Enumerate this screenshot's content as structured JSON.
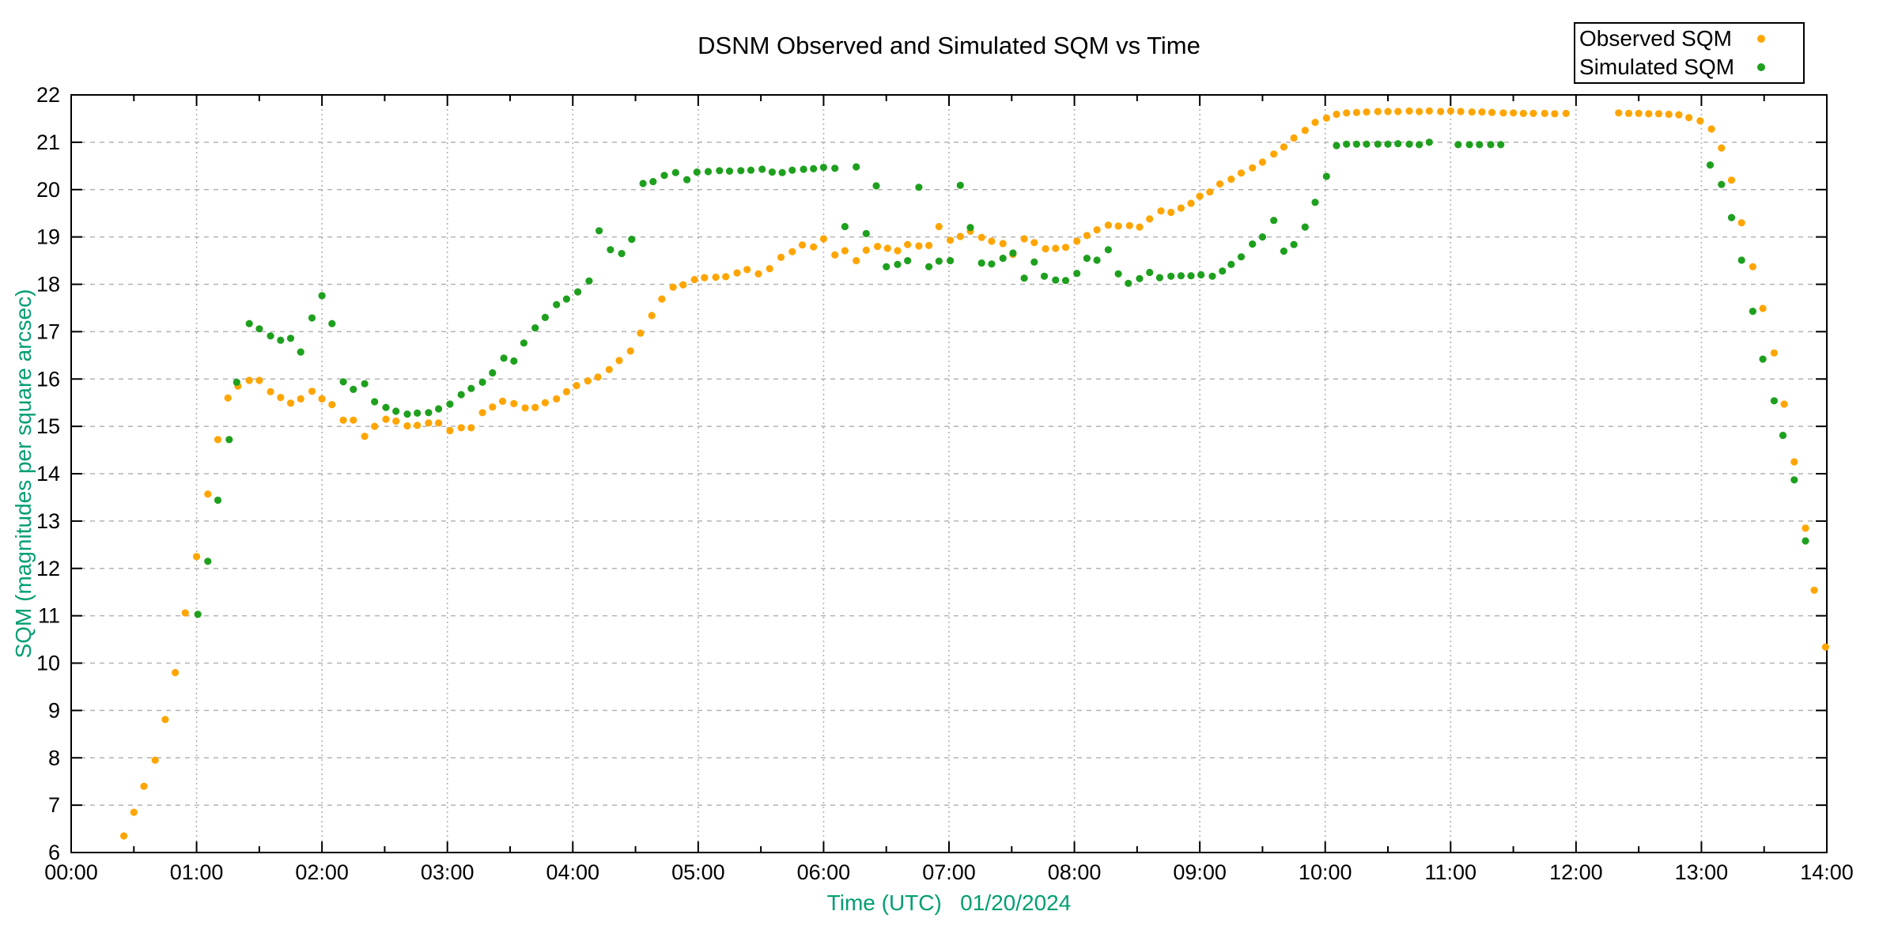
{
  "title": "DSNM Observed and Simulated SQM vs Time",
  "colors": {
    "observed": "#FFA500",
    "simulated": "#1EA01E",
    "axis_label": "#009E73",
    "tick_label": "#000000",
    "grid": "#B3B3B3",
    "frame": "#000000"
  },
  "legend": {
    "items": [
      {
        "label": "Observed SQM",
        "color": "#FFA500"
      },
      {
        "label": "Simulated SQM",
        "color": "#1EA01E"
      }
    ]
  },
  "chart_data": {
    "type": "scatter",
    "title": "DSNM Observed and Simulated SQM vs Time",
    "xlabel": "Time (UTC)   01/20/2024",
    "ylabel": "SQM (magnitudes per square arcsec)",
    "xlim_hours": [
      0,
      14
    ],
    "ylim": [
      6,
      22
    ],
    "x_tick_labels": [
      "00:00",
      "01:00",
      "02:00",
      "03:00",
      "04:00",
      "05:00",
      "06:00",
      "07:00",
      "08:00",
      "09:00",
      "10:00",
      "11:00",
      "12:00",
      "13:00",
      "14:00"
    ],
    "y_tick_labels": [
      "6",
      "7",
      "8",
      "9",
      "10",
      "11",
      "12",
      "13",
      "14",
      "15",
      "16",
      "17",
      "18",
      "19",
      "20",
      "21",
      "22"
    ],
    "grid": true,
    "legend_position": "top-right",
    "series": [
      {
        "name": "Observed SQM",
        "color": "#FFA500",
        "points": [
          [
            0.42,
            6.35
          ],
          [
            0.5,
            6.85
          ],
          [
            0.58,
            7.4
          ],
          [
            0.67,
            7.95
          ],
          [
            0.75,
            8.81
          ],
          [
            0.83,
            9.8
          ],
          [
            0.91,
            11.06
          ],
          [
            1.0,
            12.25
          ],
          [
            1.09,
            13.57
          ],
          [
            1.17,
            14.72
          ],
          [
            1.25,
            15.6
          ],
          [
            1.33,
            15.85
          ],
          [
            1.42,
            15.97
          ],
          [
            1.5,
            15.97
          ],
          [
            1.59,
            15.73
          ],
          [
            1.67,
            15.61
          ],
          [
            1.75,
            15.49
          ],
          [
            1.83,
            15.58
          ],
          [
            1.92,
            15.74
          ],
          [
            2.0,
            15.58
          ],
          [
            2.08,
            15.46
          ],
          [
            2.17,
            15.13
          ],
          [
            2.25,
            15.13
          ],
          [
            2.34,
            14.79
          ],
          [
            2.42,
            15.0
          ],
          [
            2.51,
            15.15
          ],
          [
            2.59,
            15.11
          ],
          [
            2.68,
            15.01
          ],
          [
            2.76,
            15.02
          ],
          [
            2.85,
            15.07
          ],
          [
            2.93,
            15.07
          ],
          [
            3.02,
            14.91
          ],
          [
            3.11,
            14.97
          ],
          [
            3.19,
            14.97
          ],
          [
            3.28,
            15.29
          ],
          [
            3.36,
            15.41
          ],
          [
            3.44,
            15.53
          ],
          [
            3.53,
            15.48
          ],
          [
            3.62,
            15.39
          ],
          [
            3.7,
            15.4
          ],
          [
            3.78,
            15.5
          ],
          [
            3.87,
            15.58
          ],
          [
            3.95,
            15.73
          ],
          [
            4.03,
            15.86
          ],
          [
            4.12,
            15.96
          ],
          [
            4.2,
            16.04
          ],
          [
            4.29,
            16.2
          ],
          [
            4.37,
            16.39
          ],
          [
            4.46,
            16.59
          ],
          [
            4.54,
            16.97
          ],
          [
            4.63,
            17.34
          ],
          [
            4.71,
            17.69
          ],
          [
            4.8,
            17.94
          ],
          [
            4.88,
            17.99
          ],
          [
            4.97,
            18.1
          ],
          [
            5.05,
            18.14
          ],
          [
            5.14,
            18.15
          ],
          [
            5.22,
            18.16
          ],
          [
            5.31,
            18.24
          ],
          [
            5.39,
            18.31
          ],
          [
            5.48,
            18.22
          ],
          [
            5.57,
            18.33
          ],
          [
            5.66,
            18.57
          ],
          [
            5.75,
            18.69
          ],
          [
            5.83,
            18.83
          ],
          [
            5.92,
            18.79
          ],
          [
            6.0,
            18.96
          ],
          [
            6.09,
            18.62
          ],
          [
            6.17,
            18.71
          ],
          [
            6.26,
            18.5
          ],
          [
            6.34,
            18.72
          ],
          [
            6.43,
            18.8
          ],
          [
            6.51,
            18.76
          ],
          [
            6.59,
            18.71
          ],
          [
            6.67,
            18.84
          ],
          [
            6.76,
            18.81
          ],
          [
            6.84,
            18.82
          ],
          [
            6.92,
            19.22
          ],
          [
            7.01,
            18.93
          ],
          [
            7.09,
            19.01
          ],
          [
            7.17,
            19.12
          ],
          [
            7.26,
            18.99
          ],
          [
            7.34,
            18.91
          ],
          [
            7.43,
            18.86
          ],
          [
            7.51,
            18.63
          ],
          [
            7.6,
            18.96
          ],
          [
            7.68,
            18.88
          ],
          [
            7.77,
            18.75
          ],
          [
            7.85,
            18.76
          ],
          [
            7.93,
            18.78
          ],
          [
            8.02,
            18.91
          ],
          [
            8.1,
            19.03
          ],
          [
            8.18,
            19.15
          ],
          [
            8.27,
            19.25
          ],
          [
            8.35,
            19.23
          ],
          [
            8.44,
            19.24
          ],
          [
            8.52,
            19.21
          ],
          [
            8.6,
            19.38
          ],
          [
            8.69,
            19.55
          ],
          [
            8.77,
            19.52
          ],
          [
            8.85,
            19.61
          ],
          [
            8.93,
            19.71
          ],
          [
            9.0,
            19.86
          ],
          [
            9.08,
            19.95
          ],
          [
            9.16,
            20.12
          ],
          [
            9.25,
            20.22
          ],
          [
            9.33,
            20.35
          ],
          [
            9.42,
            20.46
          ],
          [
            9.5,
            20.58
          ],
          [
            9.59,
            20.75
          ],
          [
            9.67,
            20.9
          ],
          [
            9.75,
            21.09
          ],
          [
            9.84,
            21.25
          ],
          [
            9.92,
            21.42
          ],
          [
            10.01,
            21.51
          ],
          [
            10.09,
            21.59
          ],
          [
            10.17,
            21.62
          ],
          [
            10.25,
            21.63
          ],
          [
            10.33,
            21.64
          ],
          [
            10.42,
            21.65
          ],
          [
            10.5,
            21.65
          ],
          [
            10.58,
            21.65
          ],
          [
            10.67,
            21.66
          ],
          [
            10.75,
            21.65
          ],
          [
            10.83,
            21.66
          ],
          [
            10.92,
            21.65
          ],
          [
            11.0,
            21.66
          ],
          [
            11.08,
            21.65
          ],
          [
            11.17,
            21.64
          ],
          [
            11.25,
            21.64
          ],
          [
            11.33,
            21.63
          ],
          [
            11.42,
            21.62
          ],
          [
            11.5,
            21.62
          ],
          [
            11.58,
            21.61
          ],
          [
            11.66,
            21.61
          ],
          [
            11.75,
            21.61
          ],
          [
            11.83,
            21.6
          ],
          [
            11.92,
            21.61
          ],
          [
            12.34,
            21.62
          ],
          [
            12.42,
            21.61
          ],
          [
            12.5,
            21.61
          ],
          [
            12.58,
            21.6
          ],
          [
            12.66,
            21.6
          ],
          [
            12.74,
            21.59
          ],
          [
            12.82,
            21.58
          ],
          [
            12.9,
            21.52
          ],
          [
            12.99,
            21.45
          ],
          [
            13.08,
            21.28
          ],
          [
            13.16,
            20.88
          ],
          [
            13.24,
            20.2
          ],
          [
            13.32,
            19.3
          ],
          [
            13.41,
            18.37
          ],
          [
            13.49,
            17.49
          ],
          [
            13.58,
            16.55
          ],
          [
            13.66,
            15.47
          ],
          [
            13.74,
            14.25
          ],
          [
            13.83,
            12.85
          ],
          [
            13.9,
            11.54
          ],
          [
            13.99,
            10.34
          ]
        ]
      },
      {
        "name": "Simulated SQM",
        "color": "#1EA01E",
        "points": [
          [
            1.01,
            11.03
          ],
          [
            1.09,
            12.15
          ],
          [
            1.17,
            13.44
          ],
          [
            1.26,
            14.72
          ],
          [
            1.32,
            15.93
          ],
          [
            1.42,
            17.17
          ],
          [
            1.5,
            17.06
          ],
          [
            1.59,
            16.91
          ],
          [
            1.67,
            16.82
          ],
          [
            1.75,
            16.86
          ],
          [
            1.83,
            16.57
          ],
          [
            1.92,
            17.29
          ],
          [
            2.0,
            17.76
          ],
          [
            2.08,
            17.17
          ],
          [
            2.17,
            15.94
          ],
          [
            2.25,
            15.78
          ],
          [
            2.34,
            15.9
          ],
          [
            2.42,
            15.52
          ],
          [
            2.51,
            15.4
          ],
          [
            2.59,
            15.32
          ],
          [
            2.68,
            15.26
          ],
          [
            2.76,
            15.28
          ],
          [
            2.85,
            15.29
          ],
          [
            2.93,
            15.37
          ],
          [
            3.02,
            15.47
          ],
          [
            3.11,
            15.67
          ],
          [
            3.19,
            15.8
          ],
          [
            3.28,
            15.93
          ],
          [
            3.36,
            16.13
          ],
          [
            3.45,
            16.44
          ],
          [
            3.53,
            16.38
          ],
          [
            3.61,
            16.76
          ],
          [
            3.7,
            17.08
          ],
          [
            3.78,
            17.3
          ],
          [
            3.87,
            17.57
          ],
          [
            3.95,
            17.69
          ],
          [
            4.04,
            17.84
          ],
          [
            4.13,
            18.07
          ],
          [
            4.21,
            19.13
          ],
          [
            4.3,
            18.73
          ],
          [
            4.39,
            18.65
          ],
          [
            4.47,
            18.95
          ],
          [
            4.56,
            20.13
          ],
          [
            4.64,
            20.17
          ],
          [
            4.73,
            20.3
          ],
          [
            4.82,
            20.36
          ],
          [
            4.91,
            20.21
          ],
          [
            4.99,
            20.37
          ],
          [
            5.08,
            20.38
          ],
          [
            5.17,
            20.4
          ],
          [
            5.25,
            20.39
          ],
          [
            5.34,
            20.4
          ],
          [
            5.42,
            20.41
          ],
          [
            5.51,
            20.43
          ],
          [
            5.59,
            20.37
          ],
          [
            5.67,
            20.36
          ],
          [
            5.75,
            20.41
          ],
          [
            5.84,
            20.43
          ],
          [
            5.92,
            20.44
          ],
          [
            6.0,
            20.47
          ],
          [
            6.09,
            20.45
          ],
          [
            6.17,
            19.22
          ],
          [
            6.26,
            20.48
          ],
          [
            6.34,
            19.07
          ],
          [
            6.42,
            20.08
          ],
          [
            6.5,
            18.37
          ],
          [
            6.59,
            18.42
          ],
          [
            6.67,
            18.5
          ],
          [
            6.76,
            20.05
          ],
          [
            6.84,
            18.37
          ],
          [
            6.92,
            18.49
          ],
          [
            7.01,
            18.5
          ],
          [
            7.09,
            20.09
          ],
          [
            7.17,
            19.2
          ],
          [
            7.26,
            18.45
          ],
          [
            7.34,
            18.43
          ],
          [
            7.43,
            18.55
          ],
          [
            7.51,
            18.66
          ],
          [
            7.6,
            18.13
          ],
          [
            7.68,
            18.47
          ],
          [
            7.76,
            18.17
          ],
          [
            7.85,
            18.09
          ],
          [
            7.93,
            18.08
          ],
          [
            8.02,
            18.23
          ],
          [
            8.1,
            18.55
          ],
          [
            8.18,
            18.51
          ],
          [
            8.27,
            18.73
          ],
          [
            8.35,
            18.22
          ],
          [
            8.43,
            18.02
          ],
          [
            8.52,
            18.12
          ],
          [
            8.6,
            18.25
          ],
          [
            8.68,
            18.14
          ],
          [
            8.77,
            18.17
          ],
          [
            8.85,
            18.18
          ],
          [
            8.93,
            18.18
          ],
          [
            9.01,
            18.2
          ],
          [
            9.1,
            18.17
          ],
          [
            9.18,
            18.28
          ],
          [
            9.25,
            18.42
          ],
          [
            9.33,
            18.58
          ],
          [
            9.42,
            18.85
          ],
          [
            9.5,
            19.0
          ],
          [
            9.59,
            19.35
          ],
          [
            9.67,
            18.7
          ],
          [
            9.75,
            18.84
          ],
          [
            9.84,
            19.21
          ],
          [
            9.92,
            19.73
          ],
          [
            10.01,
            20.28
          ],
          [
            10.09,
            20.93
          ],
          [
            10.17,
            20.96
          ],
          [
            10.25,
            20.96
          ],
          [
            10.33,
            20.96
          ],
          [
            10.42,
            20.96
          ],
          [
            10.5,
            20.96
          ],
          [
            10.58,
            20.97
          ],
          [
            10.67,
            20.96
          ],
          [
            10.75,
            20.95
          ],
          [
            10.83,
            21.0
          ],
          [
            11.06,
            20.95
          ],
          [
            11.15,
            20.95
          ],
          [
            11.23,
            20.95
          ],
          [
            11.32,
            20.95
          ],
          [
            11.4,
            20.95
          ],
          [
            13.07,
            20.52
          ],
          [
            13.16,
            20.11
          ],
          [
            13.24,
            19.41
          ],
          [
            13.32,
            18.51
          ],
          [
            13.41,
            17.43
          ],
          [
            13.49,
            16.42
          ],
          [
            13.58,
            15.54
          ],
          [
            13.65,
            14.81
          ],
          [
            13.74,
            13.87
          ],
          [
            13.83,
            12.58
          ]
        ]
      }
    ]
  }
}
